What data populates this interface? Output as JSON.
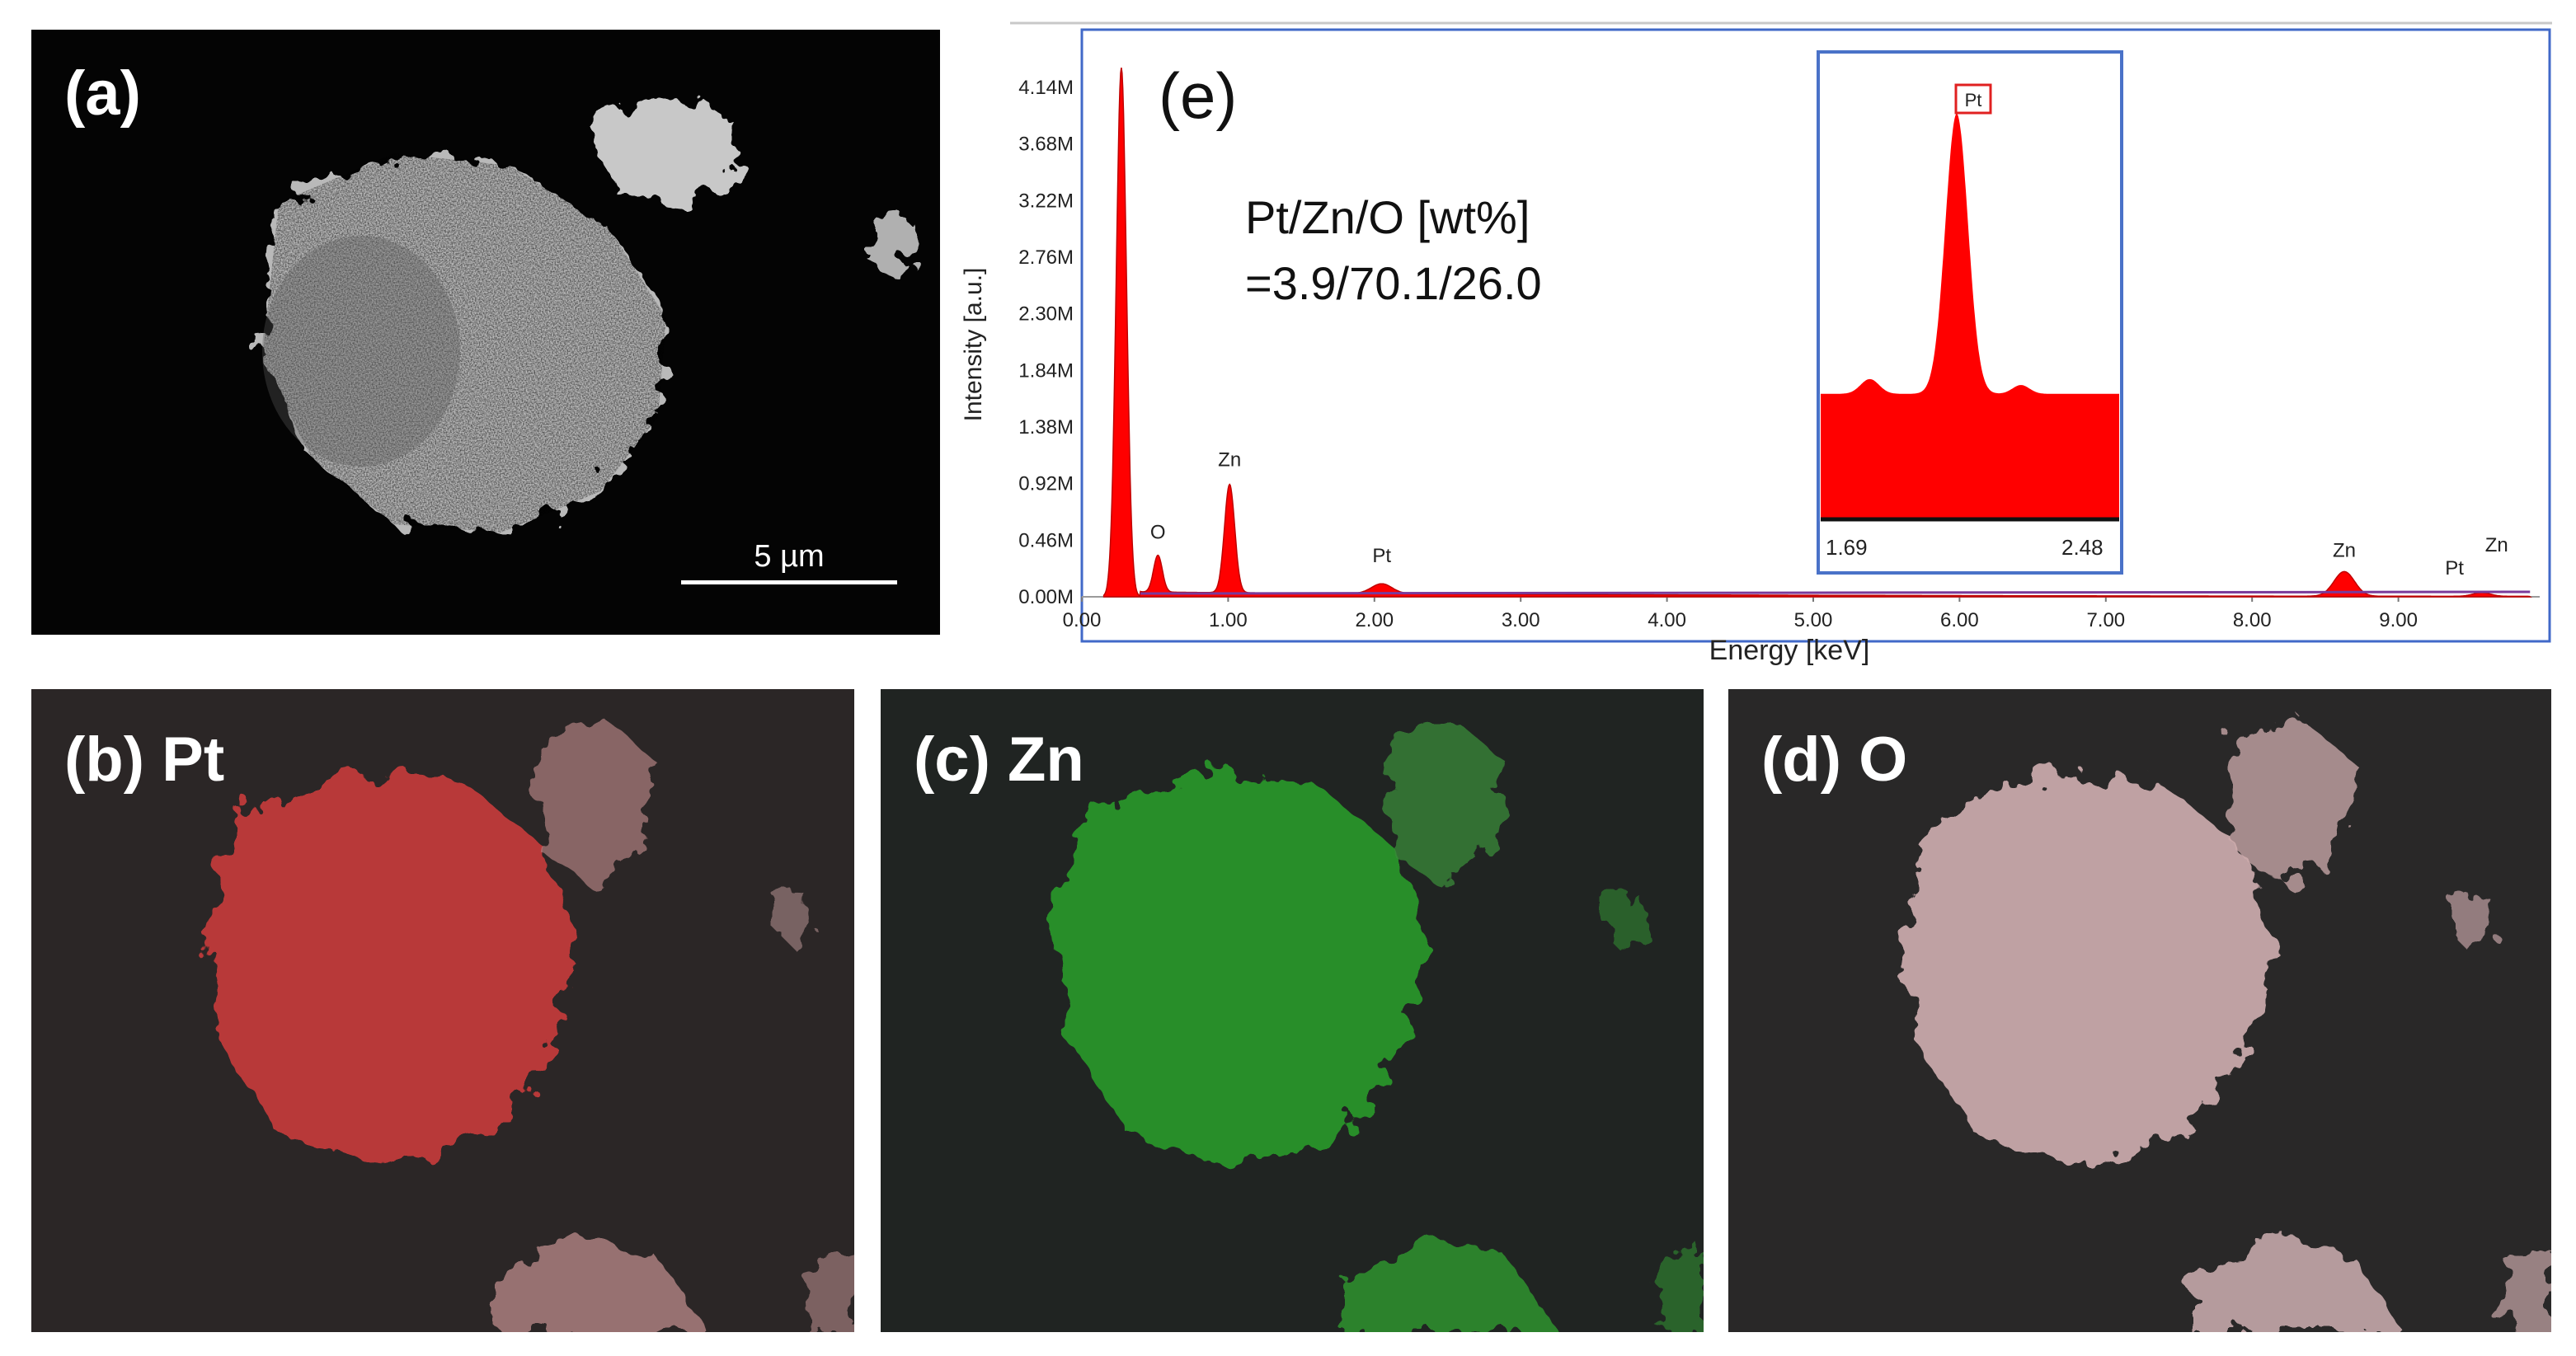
{
  "panels": {
    "a": {
      "label": "(a)",
      "scalebar": "5 µm"
    },
    "b": {
      "label": "(b) Pt",
      "color": "#d83a3a"
    },
    "c": {
      "label": "(c) Zn",
      "color": "#2aa12a"
    },
    "d": {
      "label": "(d) O",
      "color": "#e6c2c4"
    }
  },
  "chart_data": {
    "type": "area",
    "panel_label": "(e)",
    "xlabel": "Energy [keV]",
    "ylabel": "Intensity [a.u.]",
    "xlim": [
      0,
      10.0
    ],
    "ylim": [
      0,
      4.6
    ],
    "x_ticks": [
      "0.00",
      "1.00",
      "2.00",
      "3.00",
      "4.00",
      "5.00",
      "6.00",
      "7.00",
      "8.00",
      "9.00"
    ],
    "y_ticks": [
      "0.00M",
      "0.46M",
      "0.92M",
      "1.38M",
      "1.84M",
      "2.30M",
      "2.76M",
      "3.22M",
      "3.68M",
      "4.14M"
    ],
    "fill_color": "#ff0000",
    "annotation_lines": [
      "Pt/Zn/O [wt%]",
      "=3.9/70.1/26.0"
    ],
    "peaks": [
      {
        "label": "O",
        "energy": 0.52,
        "intensity": 0.3
      },
      {
        "label": "Zn",
        "energy": 1.01,
        "intensity": 0.88
      },
      {
        "label": "Pt",
        "energy": 2.05,
        "intensity": 0.08
      },
      {
        "label": "Zn",
        "energy": 8.63,
        "intensity": 0.2
      },
      {
        "label": "Pt",
        "energy": 9.44,
        "intensity": 0.03
      },
      {
        "label": "Zn",
        "energy": 9.57,
        "intensity": 0.03
      }
    ],
    "inset": {
      "x_ticks": [
        "1.69",
        "2.48"
      ],
      "xlim": [
        1.69,
        2.48
      ],
      "peak_label": "Pt",
      "peak_energy": 2.05
    }
  }
}
